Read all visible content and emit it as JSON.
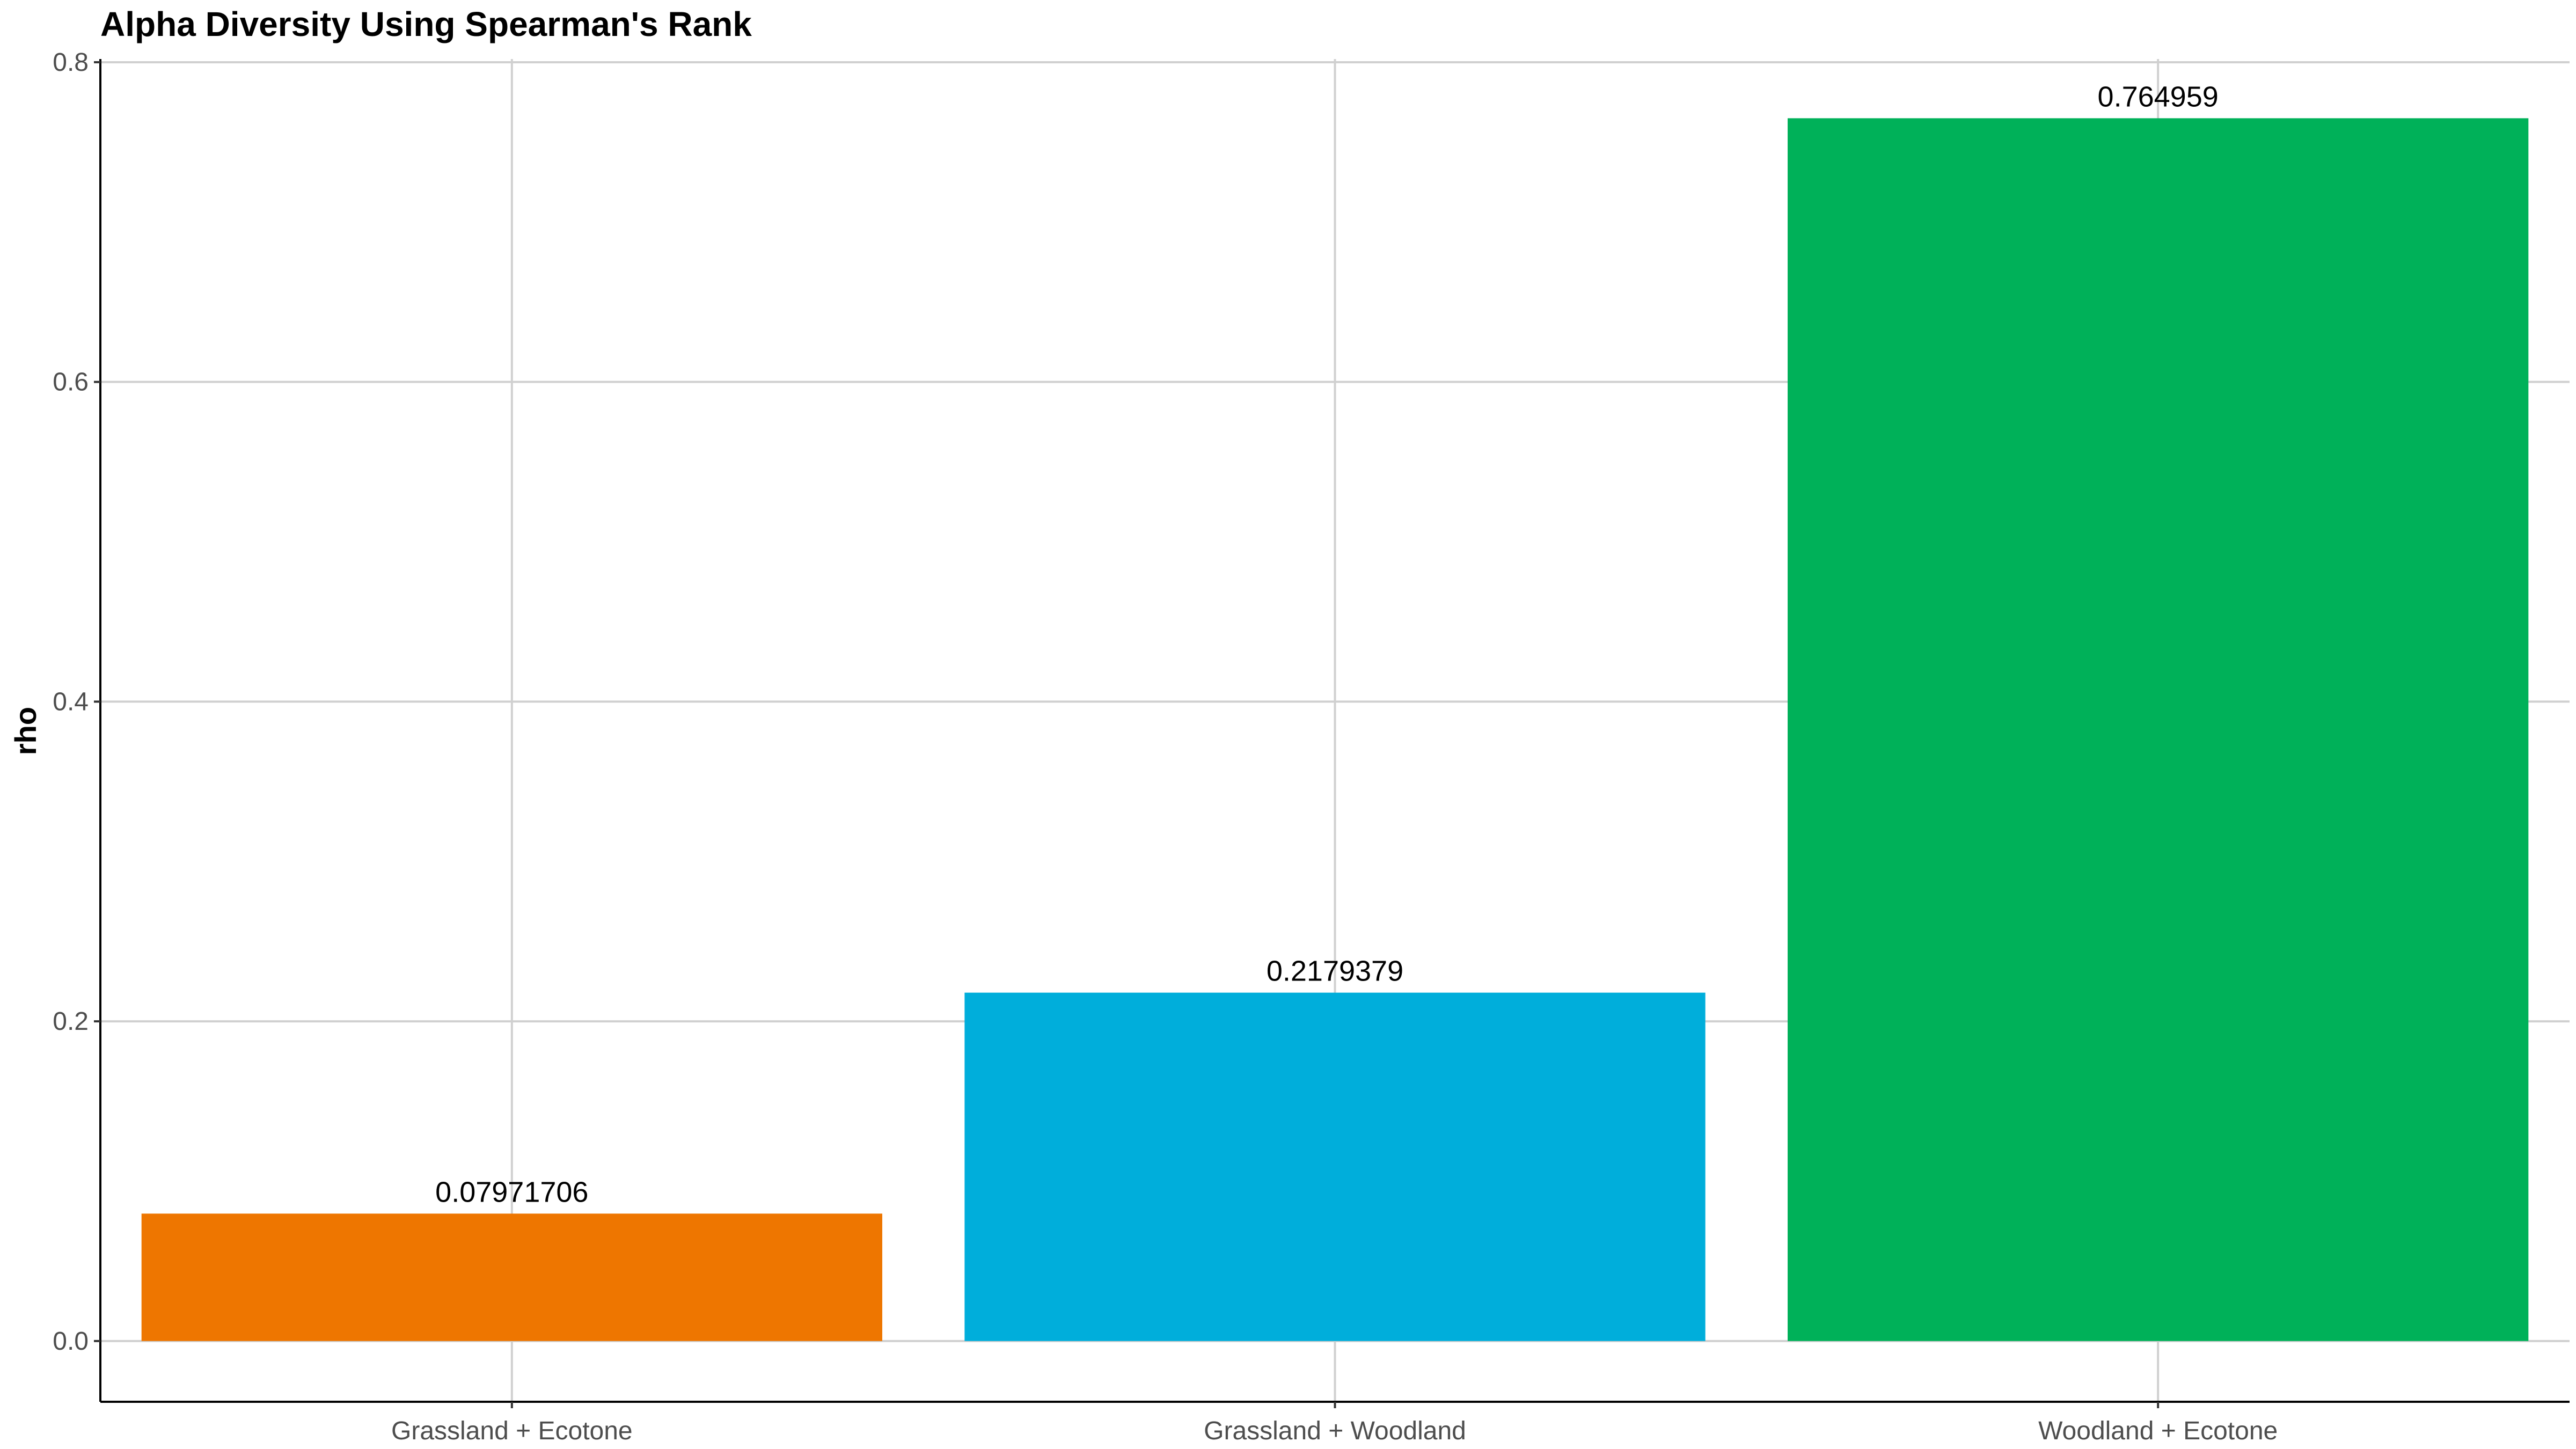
{
  "chart_data": {
    "type": "bar",
    "title": "Alpha Diversity Using Spearman's Rank",
    "xlabel": "",
    "ylabel": "rho",
    "categories": [
      "Grassland + Ecotone",
      "Grassland + Woodland",
      "Woodland + Ecotone"
    ],
    "values": [
      0.07971706,
      0.2179379,
      0.764959
    ],
    "value_labels": [
      "0.07971706",
      "0.2179379",
      "0.764959"
    ],
    "colors": [
      "#EE7600",
      "#00AEDB",
      "#00B159"
    ],
    "ylim": [
      -0.038,
      0.802
    ],
    "yticks": [
      0.0,
      0.2,
      0.4,
      0.6,
      0.8
    ],
    "ytick_labels": [
      "0.0",
      "0.2",
      "0.4",
      "0.6",
      "0.8"
    ],
    "grid": true,
    "legend": "none"
  }
}
